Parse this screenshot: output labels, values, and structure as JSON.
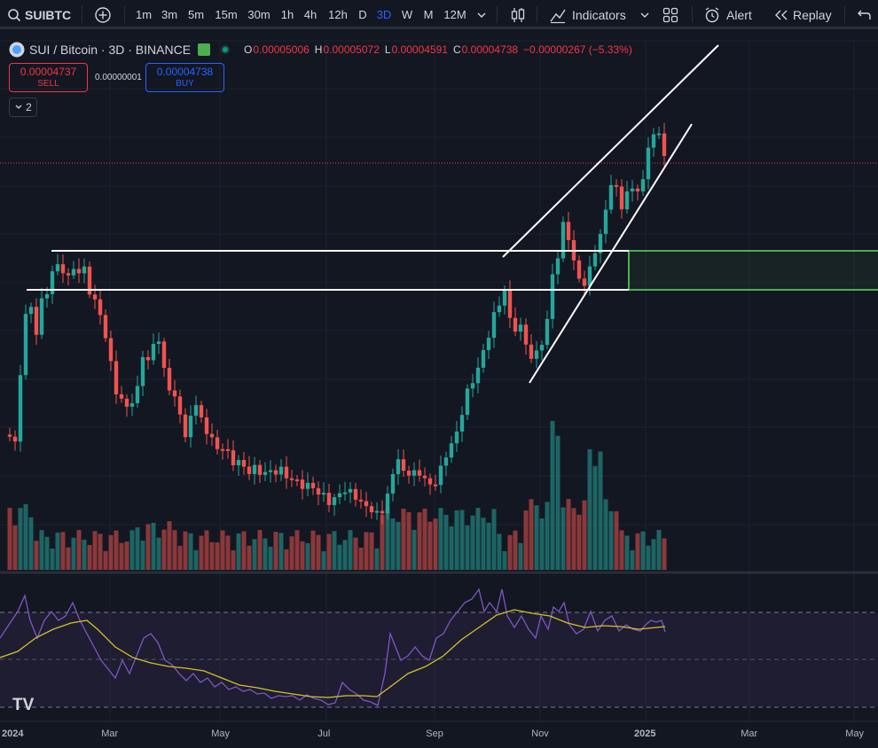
{
  "toolbar": {
    "symbol": "SUIBTC",
    "intervals": [
      "1m",
      "3m",
      "5m",
      "15m",
      "30m",
      "1h",
      "4h",
      "12h",
      "D",
      "3D",
      "W",
      "M",
      "12M"
    ],
    "active_interval": "3D",
    "indicators_label": "Indicators",
    "alert_label": "Alert",
    "replay_label": "Replay"
  },
  "legend": {
    "title": "SUI / Bitcoin · 3D · BINANCE",
    "ohlc": [
      {
        "k": "O",
        "v": "0.00005006"
      },
      {
        "k": "H",
        "v": "0.00005072"
      },
      {
        "k": "L",
        "v": "0.00004591"
      },
      {
        "k": "C",
        "v": "0.00004738"
      }
    ],
    "change": "−0.00000267 (−5.33%)",
    "sell_price": "0.00004737",
    "sell_label": "SELL",
    "spread": "0.00000001",
    "buy_price": "0.00004738",
    "buy_label": "BUY",
    "collapse_count": "2"
  },
  "watermark": "TV",
  "time_axis": [
    "2024",
    "Mar",
    "May",
    "Jul",
    "Sep",
    "Nov",
    "2025",
    "Mar",
    "May"
  ],
  "colors": {
    "up": "#26a69a",
    "down": "#ef5350",
    "rsi": "#7e57c2",
    "rsi_ma": "#d4c12a",
    "accent": "#2962ff",
    "zone": "#4caf50"
  }
}
